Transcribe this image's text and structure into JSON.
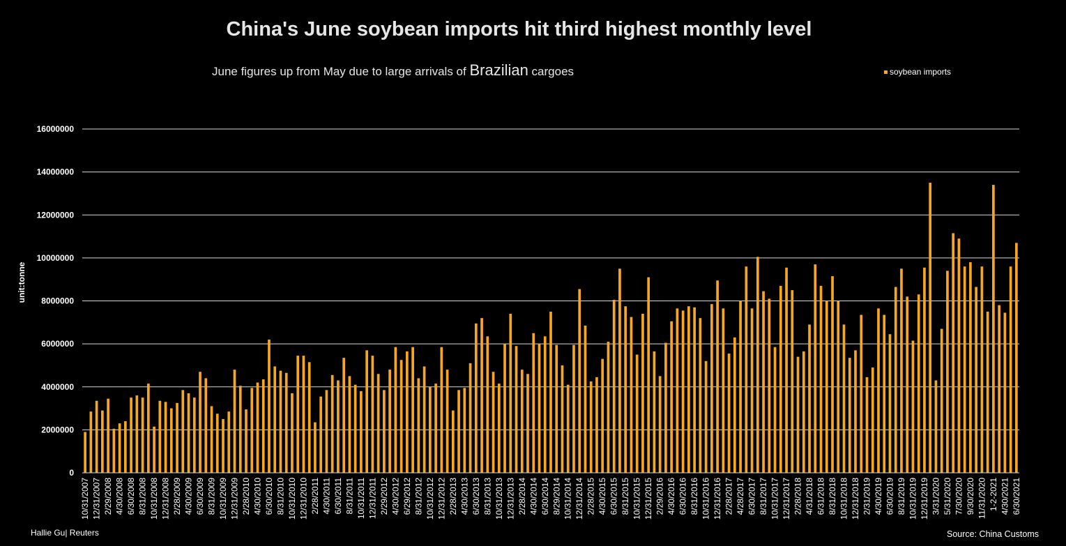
{
  "title": "China's June soybean imports hit third highest monthly level",
  "subtitle_parts": [
    "June figures up from May due to large arrivals of ",
    "Brazilian",
    " cargoes"
  ],
  "credit": "Hallie Gu| Reuters",
  "source": "Source: China Customs",
  "colors": {
    "bar": "#f5a623",
    "grid": "#d9d9d9",
    "background": "#000000"
  },
  "chart_data": {
    "type": "bar",
    "series_name": "soybean imports",
    "ylabel": "unit:tonne",
    "ylim": [
      0,
      16000000
    ],
    "yticks": [
      0,
      2000000,
      4000000,
      6000000,
      8000000,
      10000000,
      12000000,
      14000000,
      16000000
    ],
    "ytick_labels": [
      "0",
      "2000000",
      "4000000",
      "6000000",
      "8000000",
      "10000000",
      "12000000",
      "14000000",
      "16000000"
    ],
    "xtick_labels": [
      "10/31/2007",
      "12/31/2007",
      "2/29/2008",
      "4/30/2008",
      "6/30/2008",
      "8/31/2008",
      "10/31/2008",
      "12/31/2008",
      "2/28/2009",
      "4/30/2009",
      "6/30/2009",
      "8/31/2009",
      "10/31/2009",
      "12/31/2009",
      "2/28/2010",
      "4/30/2010",
      "6/30/2010",
      "8/31/2010",
      "10/31/2010",
      "12/31/2010",
      "2/28/2011",
      "4/30/2011",
      "6/30/2011",
      "8/31/2011",
      "10/31/2011",
      "12/31/2011",
      "2/29/2012",
      "4/30/2012",
      "6/29/2012",
      "8/31/2012",
      "10/31/2012",
      "12/31/2012",
      "2/28/2013",
      "4/30/2013",
      "6/30/2013",
      "8/31/2013",
      "10/31/2013",
      "12/31/2013",
      "2/28/2014",
      "4/30/2014",
      "6/30/2014",
      "8/29/2014",
      "10/31/2014",
      "12/31/2014",
      "2/28/2015",
      "4/30/2015",
      "6/30/2015",
      "8/31/2015",
      "10/31/2015",
      "12/31/2015",
      "2/29/2016",
      "4/30/2016",
      "6/30/2016",
      "8/31/2016",
      "10/31/2016",
      "12/31/2016",
      "2/28/2017",
      "4/28/2017",
      "6/30/2017",
      "8/31/2017",
      "10/31/2017",
      "12/31/2017",
      "2/28/2018",
      "4/31/2018",
      "6/31/2018",
      "8/31/2018",
      "10/31/2018",
      "12/31/2018",
      "2/31/2019",
      "4/30/2019",
      "6/30/2019",
      "8/31/2019",
      "10/31/2019",
      "12/31/2019",
      "3/31/2020",
      "5/31/2020",
      "7/30/2020",
      "9/30/2020",
      "11/31/2020",
      "1-2-2021",
      "4/30/2021",
      "6/30/2021"
    ],
    "tick_bar_index": [
      0,
      2,
      4,
      6,
      8,
      10,
      12,
      14,
      16,
      18,
      20,
      22,
      24,
      26,
      28,
      30,
      32,
      34,
      36,
      38,
      40,
      42,
      44,
      46,
      48,
      50,
      52,
      54,
      56,
      58,
      60,
      62,
      64,
      66,
      68,
      70,
      72,
      74,
      76,
      78,
      80,
      82,
      84,
      86,
      88,
      90,
      92,
      94,
      96,
      98,
      100,
      102,
      104,
      106,
      108,
      110,
      112,
      114,
      116,
      118,
      120,
      122,
      124,
      126,
      128,
      130,
      132,
      134,
      136,
      138,
      140,
      142,
      144,
      146,
      148,
      150,
      152,
      154,
      156,
      158,
      160,
      162
    ],
    "values": [
      1900000,
      2850000,
      3350000,
      2900000,
      3450000,
      2050000,
      2300000,
      2400000,
      3500000,
      3600000,
      3500000,
      4150000,
      2150000,
      3350000,
      3300000,
      3000000,
      3250000,
      3850000,
      3700000,
      3500000,
      4700000,
      4400000,
      3100000,
      2750000,
      2500000,
      2850000,
      4800000,
      4050000,
      2950000,
      3950000,
      4200000,
      4350000,
      6200000,
      4950000,
      4750000,
      4650000,
      3700000,
      5450000,
      5450000,
      5150000,
      2350000,
      3550000,
      3850000,
      4550000,
      4300000,
      5350000,
      4500000,
      4100000,
      3800000,
      5700000,
      5450000,
      4600000,
      3850000,
      4800000,
      5850000,
      5250000,
      5650000,
      5850000,
      4400000,
      4950000,
      4000000,
      4150000,
      5850000,
      4800000,
      2900000,
      3850000,
      3950000,
      5100000,
      6950000,
      7200000,
      6350000,
      4700000,
      4150000,
      6000000,
      7400000,
      5900000,
      4800000,
      4600000,
      6500000,
      6000000,
      6350000,
      7500000,
      5950000,
      5000000,
      4100000,
      5950000,
      8550000,
      6850000,
      4250000,
      4450000,
      5300000,
      6100000,
      8050000,
      9500000,
      7750000,
      7250000,
      5500000,
      7400000,
      9100000,
      5650000,
      4500000,
      6050000,
      7050000,
      7650000,
      7550000,
      7750000,
      7700000,
      7200000,
      5200000,
      7850000,
      8950000,
      7650000,
      5550000,
      6300000,
      8000000,
      9600000,
      7650000,
      10050000,
      8450000,
      8100000,
      5850000,
      8700000,
      9550000,
      8500000,
      5400000,
      5650000,
      6900000,
      9700000,
      8700000,
      8000000,
      9150000,
      8000000,
      6900000,
      5350000,
      5700000,
      7350000,
      4450000,
      4900000,
      7650000,
      7350000,
      6450000,
      8650000,
      9500000,
      8200000,
      6150000,
      8300000,
      9550000,
      13500000,
      4300000,
      6700000,
      9400000,
      11150000,
      10900000,
      9600000,
      9800000,
      8650000,
      9600000,
      7500000,
      13400000,
      7800000,
      7450000,
      9600000,
      10700000
    ]
  },
  "legend": {
    "label": "soybean imports"
  }
}
